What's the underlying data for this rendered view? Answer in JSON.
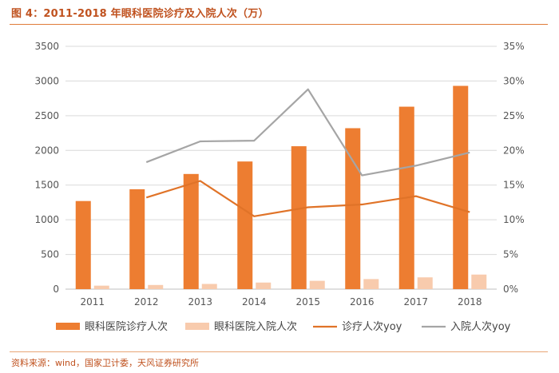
{
  "title": "图 4：2011-2018 年眼科医院诊疗及入院人次（万）",
  "source": "资料来源：wind，国家卫计委，天风证券研究所",
  "colors": {
    "bar_outpatient": "#ed7d31",
    "bar_inpatient": "#f8cbad",
    "line_outpatient_yoy": "#e07328",
    "line_inpatient_yoy": "#a5a5a5",
    "grid": "#d9d9d9",
    "title": "#c0521f"
  },
  "chart_data": {
    "type": "bar",
    "title": "2011-2018 年眼科医院诊疗及入院人次（万）",
    "categories": [
      "2011",
      "2012",
      "2013",
      "2014",
      "2015",
      "2016",
      "2017",
      "2018"
    ],
    "series": [
      {
        "name": "眼科医院诊疗人次",
        "type": "bar",
        "axis": "left",
        "values": [
          1270,
          1440,
          1660,
          1840,
          2060,
          2320,
          2630,
          2930
        ]
      },
      {
        "name": "眼科医院入院人次",
        "type": "bar",
        "axis": "left",
        "values": [
          50,
          60,
          75,
          95,
          120,
          145,
          170,
          210
        ]
      },
      {
        "name": "诊疗人次yoy",
        "type": "line",
        "axis": "right",
        "values": [
          null,
          13.2,
          15.6,
          10.5,
          11.8,
          12.2,
          13.4,
          11.1
        ]
      },
      {
        "name": "入院人次yoy",
        "type": "line",
        "axis": "right",
        "values": [
          null,
          18.3,
          21.3,
          21.4,
          28.8,
          16.4,
          17.8,
          19.7
        ]
      }
    ],
    "y_left": {
      "min": 0,
      "max": 3500,
      "ticks": [
        "0",
        "500",
        "1000",
        "1500",
        "2000",
        "2500",
        "3000",
        "3500"
      ]
    },
    "y_right": {
      "min": 0,
      "max": 35,
      "ticks": [
        "0%",
        "5%",
        "10%",
        "15%",
        "20%",
        "25%",
        "30%",
        "35%"
      ]
    },
    "grid": true,
    "legend_position": "bottom"
  }
}
